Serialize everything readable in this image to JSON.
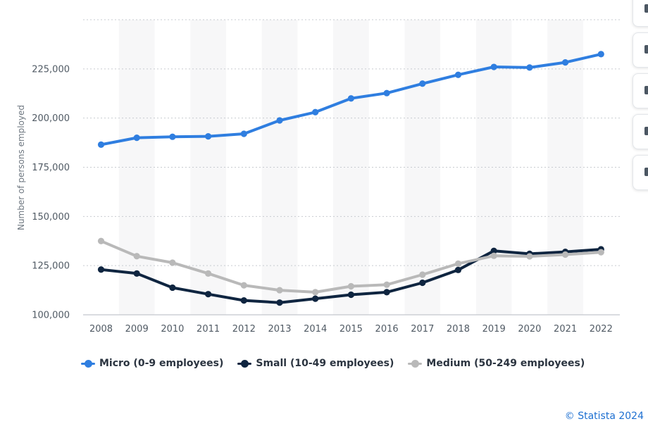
{
  "chart_data": {
    "type": "line",
    "ylabel": "Number of persons employed",
    "xlabel": "",
    "categories": [
      "2008",
      "2009",
      "2010",
      "2011",
      "2012",
      "2013",
      "2014",
      "2015",
      "2016",
      "2017",
      "2018",
      "2019",
      "2020",
      "2021",
      "2022"
    ],
    "ylim": [
      100000,
      250000
    ],
    "yticks": [
      100000,
      125000,
      150000,
      175000,
      200000,
      225000
    ],
    "ytick_labels": [
      "100,000",
      "125,000",
      "150,000",
      "175,000",
      "200,000",
      "225,000"
    ],
    "grid": true,
    "legend_position": "bottom-left",
    "series": [
      {
        "name": "Micro (0-9 employees)",
        "color": "#2f7ee0",
        "values": [
          186500,
          190000,
          190500,
          190700,
          192000,
          198800,
          203000,
          210000,
          212700,
          217500,
          222000,
          226000,
          225700,
          228300,
          232500
        ]
      },
      {
        "name": "Small (10-49 employees)",
        "color": "#0f2540",
        "values": [
          123000,
          121000,
          113800,
          110500,
          107300,
          106200,
          108200,
          110200,
          111500,
          116300,
          122800,
          132500,
          131000,
          132000,
          133300
        ]
      },
      {
        "name": "Medium (50-249 employees)",
        "color": "#b9b9b9",
        "values": [
          137500,
          129800,
          126500,
          121000,
          115000,
          112500,
          111500,
          114500,
          115300,
          120400,
          126000,
          130000,
          129700,
          130600,
          131800
        ]
      }
    ]
  },
  "credit": "© Statista 2024",
  "toolbar": {
    "buttons": [
      "tool-1",
      "tool-2",
      "tool-3",
      "tool-4",
      "tool-5"
    ]
  }
}
